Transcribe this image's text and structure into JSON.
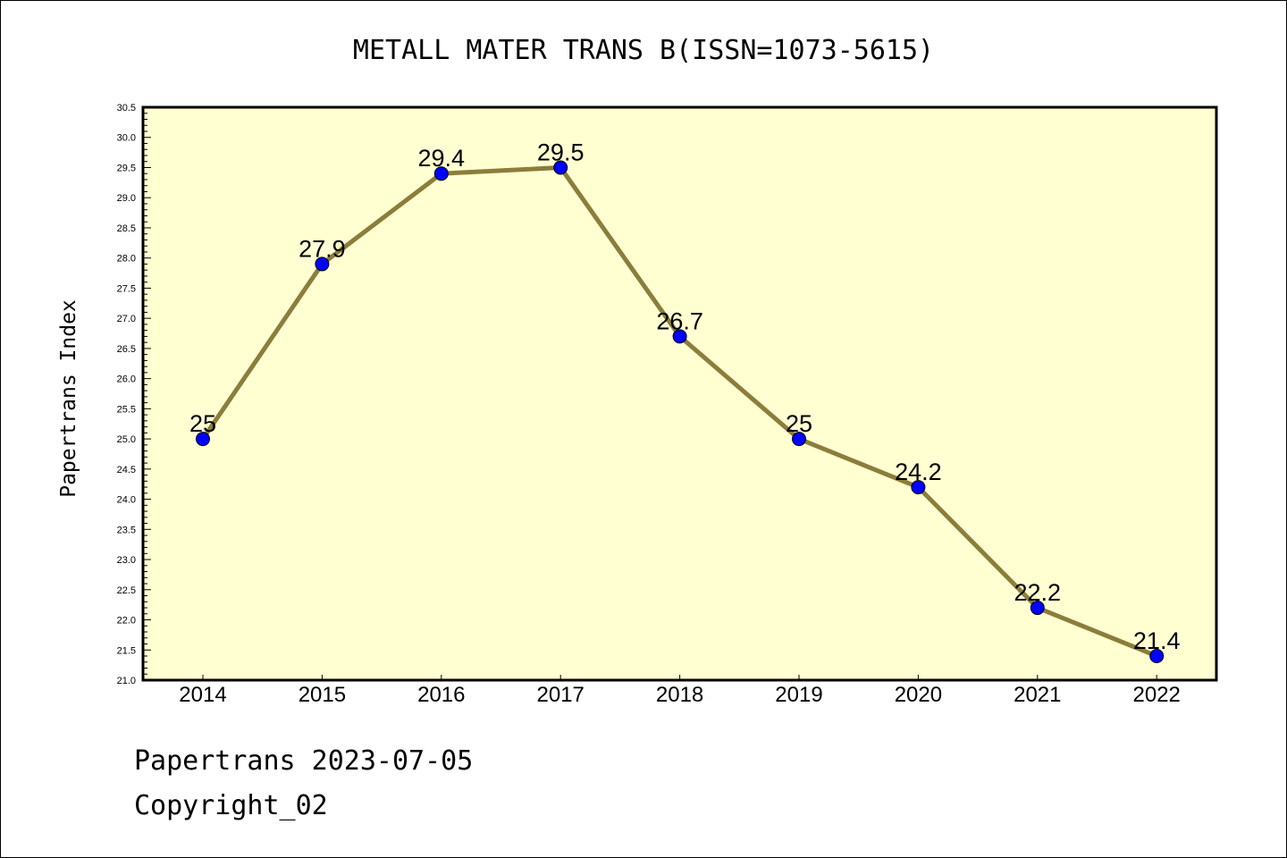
{
  "chart_data": {
    "type": "line",
    "title": "METALL MATER TRANS B(ISSN=1073-5615)",
    "xlabel": "",
    "ylabel": "Papertrans Index",
    "categories": [
      "2014",
      "2015",
      "2016",
      "2017",
      "2018",
      "2019",
      "2020",
      "2021",
      "2022"
    ],
    "values": [
      25,
      27.9,
      29.4,
      29.5,
      26.7,
      25,
      24.2,
      22.2,
      21.4
    ],
    "data_labels": [
      "25",
      "27.9",
      "29.4",
      "29.5",
      "26.7",
      "25",
      "24.2",
      "22.2",
      "21.4"
    ],
    "ylim": [
      21.0,
      30.5
    ],
    "ytick_step": 0.5,
    "yticks": [
      "21.0",
      "21.5",
      "22.0",
      "22.5",
      "23.0",
      "23.5",
      "24.0",
      "24.5",
      "25.0",
      "25.5",
      "26.0",
      "26.5",
      "27.0",
      "27.5",
      "28.0",
      "28.5",
      "29.0",
      "29.5",
      "30.0",
      "30.5"
    ],
    "grid": false,
    "legend": "none",
    "colors": {
      "plot_background": "#ffffd2",
      "line": "#8b7d3a",
      "marker": "#0000ff"
    }
  },
  "footer": {
    "line1": "Papertrans 2023-07-05",
    "line2": "Copyright_02"
  }
}
